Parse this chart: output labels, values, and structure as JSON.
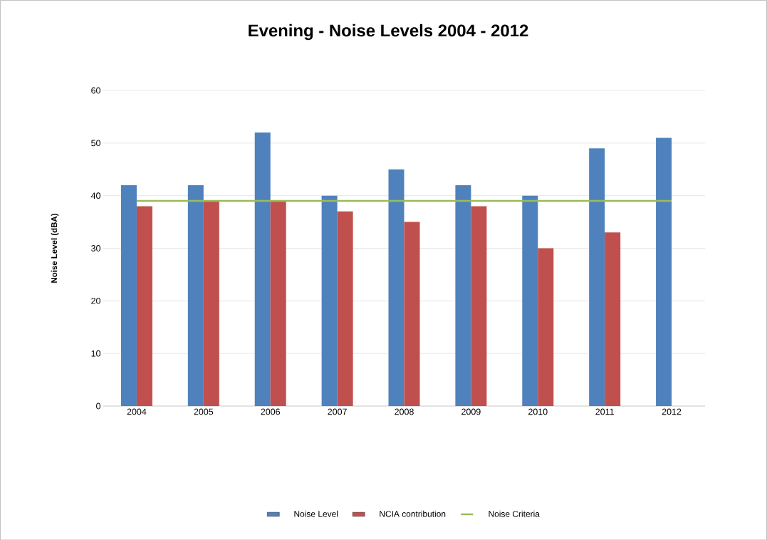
{
  "chart_data": {
    "type": "bar",
    "title": "Evening - Noise Levels 2004 - 2012",
    "ylabel": "Noise Level (dBA)",
    "categories": [
      "2004",
      "2005",
      "2006",
      "2007",
      "2008",
      "2009",
      "2010",
      "2011",
      "2012"
    ],
    "series": [
      {
        "name": "Noise Level",
        "color": "#4f81bd",
        "values": [
          42,
          42,
          52,
          40,
          45,
          42,
          40,
          49,
          51
        ]
      },
      {
        "name": "NCIA contribution",
        "color": "#c0504d",
        "values": [
          38,
          39,
          39,
          37,
          35,
          38,
          30,
          33,
          null
        ]
      },
      {
        "name": "Noise Criteria",
        "type": "line",
        "color": "#9bbb59",
        "values": [
          39,
          39,
          39,
          39,
          39,
          39,
          39,
          39,
          39
        ]
      }
    ],
    "ylim": [
      0,
      60
    ],
    "yticks": [
      0,
      10,
      20,
      30,
      40,
      50,
      60
    ],
    "grid": "y",
    "legend": "bottom"
  }
}
